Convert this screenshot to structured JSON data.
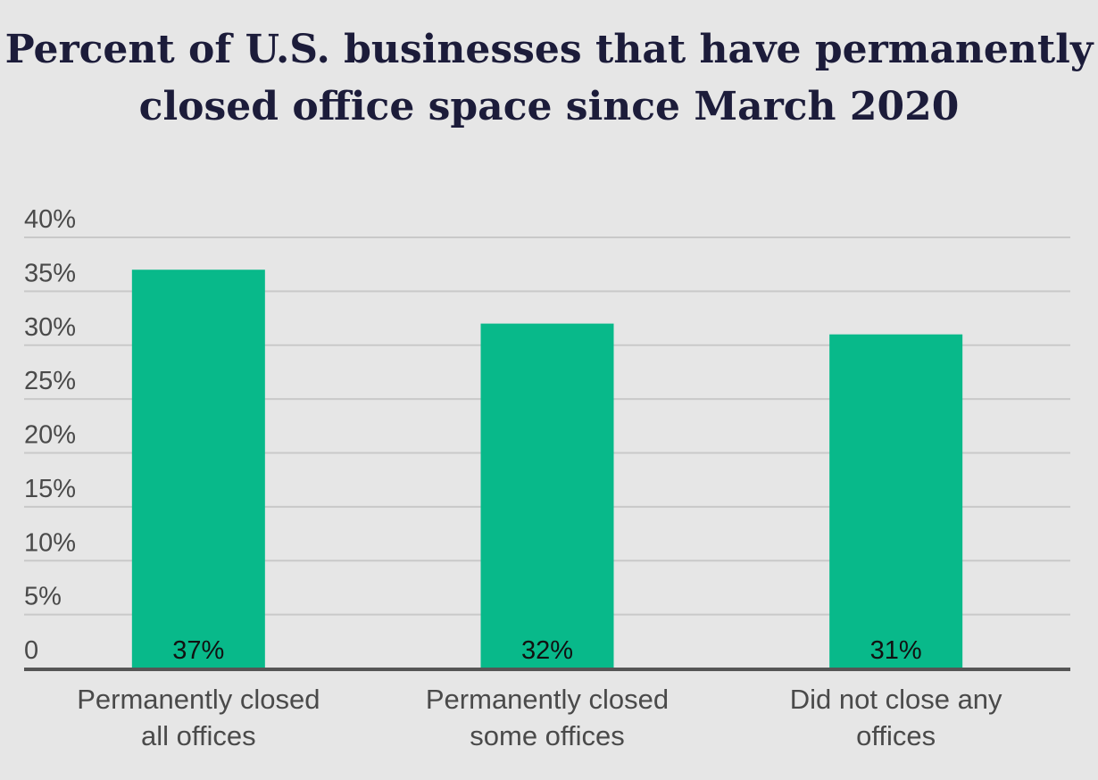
{
  "title_line1": "Percent of U.S. businesses that have permanently",
  "title_line2": "closed office space since March 2020",
  "colors": {
    "bar": "#08b98a",
    "grid": "#c9c9c9",
    "axis": "#555555",
    "tick_text": "#4a4a4a",
    "label_text": "#111111",
    "category_text": "#4a4a4a"
  },
  "chart_data": {
    "type": "bar",
    "categories": [
      [
        "Permanently closed",
        "all offices"
      ],
      [
        "Permanently closed",
        "some offices"
      ],
      [
        "Did not close any",
        "offices"
      ]
    ],
    "values": [
      37,
      32,
      31
    ],
    "data_labels": [
      "37%",
      "32%",
      "31%"
    ],
    "yticks": [
      {
        "value": 0,
        "label": "0"
      },
      {
        "value": 5,
        "label": "5%"
      },
      {
        "value": 10,
        "label": "10%"
      },
      {
        "value": 15,
        "label": "15%"
      },
      {
        "value": 20,
        "label": "20%"
      },
      {
        "value": 25,
        "label": "25%"
      },
      {
        "value": 30,
        "label": "30%"
      },
      {
        "value": 35,
        "label": "35%"
      },
      {
        "value": 40,
        "label": "40%"
      }
    ],
    "ylim": [
      0,
      40
    ],
    "grid": true,
    "legend": "none",
    "xlabel": "",
    "ylabel": ""
  }
}
